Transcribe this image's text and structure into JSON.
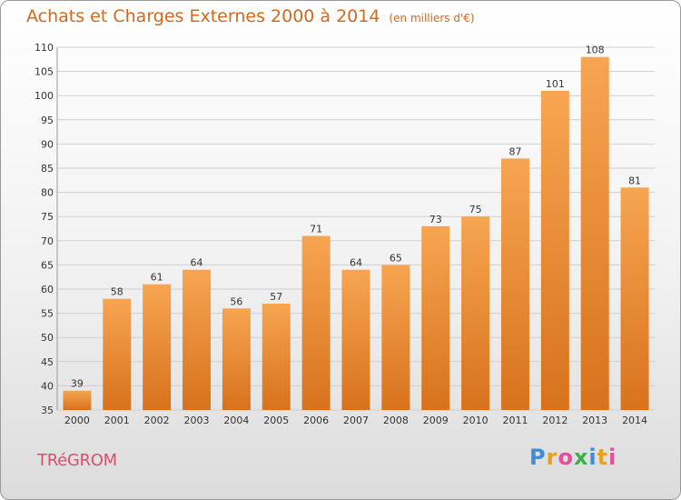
{
  "header": {
    "title": "Achats et Charges Externes 2000 à 2014",
    "unit": "(en milliers d'€)"
  },
  "footer": {
    "commune": "TRéGROM",
    "logo_letters": [
      "P",
      "r",
      "o",
      "x",
      "i",
      "t",
      "i"
    ],
    "logo_colors": [
      "#3a8fd8",
      "#e8a020",
      "#e84c9a",
      "#3ab04a",
      "#3a8fd8",
      "#e8a020",
      "#e84c9a"
    ]
  },
  "colors": {
    "bar_top": "#f7a552",
    "bar_bottom": "#d8721c",
    "grid": "#cfcfcf",
    "axis_text": "#333333"
  },
  "chart_data": {
    "type": "bar",
    "title": "Achats et Charges Externes 2000 à 2014",
    "subtitle": "(en milliers d'€)",
    "categories": [
      "2000",
      "2001",
      "2002",
      "2003",
      "2004",
      "2005",
      "2006",
      "2007",
      "2008",
      "2009",
      "2010",
      "2011",
      "2012",
      "2013",
      "2014"
    ],
    "values": [
      39,
      58,
      61,
      64,
      56,
      57,
      71,
      64,
      65,
      73,
      75,
      87,
      101,
      108,
      81
    ],
    "ylim": [
      35,
      110
    ],
    "yticks": [
      35,
      40,
      45,
      50,
      55,
      60,
      65,
      70,
      75,
      80,
      85,
      90,
      95,
      100,
      105,
      110
    ],
    "grid": true,
    "data_labels": true
  }
}
